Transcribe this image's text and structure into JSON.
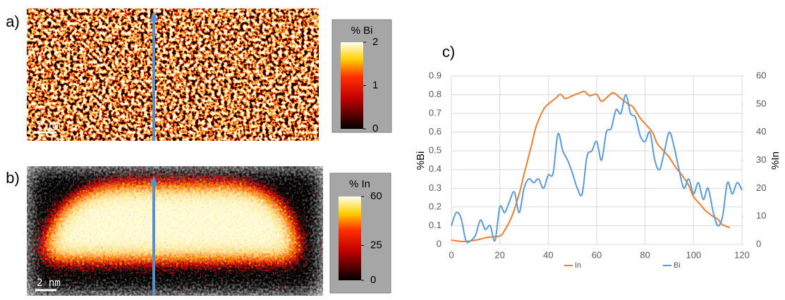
{
  "maps": [
    {
      "label": "a)",
      "colorbar_title": "% Bi",
      "clim": [
        0,
        2
      ],
      "colorbar_ticks": [
        2,
        1,
        0
      ],
      "scale_bar": "2 nm"
    },
    {
      "label": "b)",
      "colorbar_title": "% In",
      "clim": [
        0,
        60
      ],
      "colorbar_ticks": [
        60,
        25,
        0
      ],
      "scale_bar": "2 nm"
    }
  ],
  "chart_data": {
    "type": "line",
    "title": "c)",
    "y_label": "%Bi",
    "y2_label": "%In",
    "xlim": [
      0,
      120
    ],
    "xticks": [
      0,
      20,
      40,
      60,
      80,
      100,
      120
    ],
    "ylim": [
      0,
      0.9
    ],
    "yticks": [
      0,
      0.1,
      0.2,
      0.3,
      0.4,
      0.5,
      0.6,
      0.7,
      0.8,
      0.9
    ],
    "y2lim": [
      0,
      60
    ],
    "y2ticks": [
      0,
      10,
      20,
      30,
      40,
      50,
      60
    ],
    "grid": true,
    "legend": "bottom",
    "series": [
      {
        "name": "In",
        "color": "#ed7d31",
        "axis": "y2",
        "x": [
          0,
          5,
          10,
          15,
          20,
          22,
          25,
          28,
          30,
          33,
          35,
          38,
          40,
          43,
          45,
          47,
          50,
          53,
          55,
          57,
          60,
          62,
          65,
          67,
          70,
          73,
          75,
          78,
          80,
          83,
          85,
          88,
          90,
          93,
          95,
          98,
          100,
          103,
          105,
          108,
          110,
          112,
          115
        ],
        "values": [
          1.5,
          1,
          1.5,
          2.5,
          3,
          5,
          10,
          18,
          25,
          35,
          42,
          48,
          50,
          52,
          53.5,
          52,
          53,
          54,
          54.5,
          53,
          53.5,
          51,
          53,
          54,
          52,
          50,
          49,
          45,
          43,
          40,
          36,
          33,
          31,
          27,
          25,
          21,
          17,
          14,
          12,
          10,
          9,
          7,
          6
        ]
      },
      {
        "name": "Bi",
        "color": "#5b9bd5",
        "x": [
          0,
          2,
          4,
          6,
          8,
          10,
          12,
          14,
          16,
          18,
          20,
          22,
          24,
          26,
          28,
          30,
          32,
          34,
          36,
          38,
          40,
          42,
          44,
          46,
          48,
          50,
          52,
          54,
          56,
          58,
          60,
          62,
          64,
          66,
          68,
          70,
          72,
          74,
          76,
          78,
          80,
          82,
          84,
          86,
          88,
          90,
          92,
          94,
          96,
          98,
          100,
          102,
          104,
          106,
          108,
          110,
          112,
          114,
          116,
          118,
          120
        ],
        "values": [
          0.1,
          0.17,
          0.14,
          0.02,
          0.02,
          0.05,
          0.13,
          0.08,
          0.1,
          0.02,
          0.2,
          0.17,
          0.23,
          0.28,
          0.17,
          0.3,
          0.35,
          0.33,
          0.35,
          0.3,
          0.37,
          0.38,
          0.59,
          0.5,
          0.45,
          0.38,
          0.3,
          0.27,
          0.47,
          0.5,
          0.55,
          0.45,
          0.6,
          0.62,
          0.72,
          0.7,
          0.8,
          0.7,
          0.68,
          0.58,
          0.55,
          0.6,
          0.45,
          0.4,
          0.5,
          0.6,
          0.52,
          0.4,
          0.3,
          0.35,
          0.27,
          0.33,
          0.24,
          0.3,
          0.18,
          0.1,
          0.15,
          0.33,
          0.27,
          0.33,
          0.29
        ]
      }
    ]
  }
}
